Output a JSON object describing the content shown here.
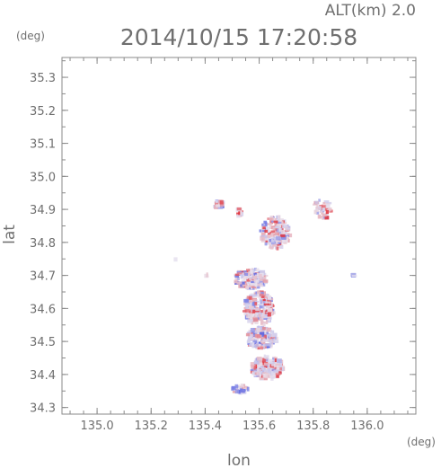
{
  "header": {
    "alt_label": "ALT(km) 2.0",
    "timestamp": "2014/10/15 17:20:58"
  },
  "colors": {
    "axis": "#8a8a8a",
    "text": "#6f6f6f",
    "positive": "#e0303a",
    "negative": "#4a55e0",
    "near_zero": "#e9e3ee"
  },
  "chart_data": {
    "type": "heatmap",
    "title": "2014/10/15 17:20:58",
    "subtitle": "ALT(km) 2.0",
    "xlabel": "lon",
    "ylabel": "lat",
    "x_unit": "(deg)",
    "y_unit": "(deg)",
    "xlim": [
      134.87,
      136.18
    ],
    "ylim": [
      34.28,
      35.36
    ],
    "x_ticks": [
      135.0,
      135.2,
      135.4,
      135.6,
      135.8,
      136.0
    ],
    "x_tick_labels": [
      "135.0",
      "135.2",
      "135.4",
      "135.6",
      "135.8",
      "136.0"
    ],
    "y_ticks": [
      34.3,
      34.4,
      34.5,
      34.6,
      34.7,
      34.8,
      34.9,
      35.0,
      35.1,
      35.2,
      35.3
    ],
    "y_tick_labels": [
      "34.3",
      "34.4",
      "34.5",
      "34.6",
      "34.7",
      "34.8",
      "34.9",
      "35.0",
      "35.1",
      "35.2",
      "35.3"
    ],
    "grid": false,
    "legend": "none",
    "value_range": [
      -1,
      1
    ],
    "color_scale": "blue (negative) - white - red (positive)",
    "regions": [
      {
        "lon": 135.45,
        "lat": 34.915,
        "rlon": 0.02,
        "rlat": 0.012,
        "n": 25,
        "bias": 0.0
      },
      {
        "lon": 135.53,
        "lat": 34.89,
        "rlon": 0.015,
        "rlat": 0.012,
        "n": 15,
        "bias": 0.3
      },
      {
        "lon": 135.66,
        "lat": 34.83,
        "rlon": 0.055,
        "rlat": 0.05,
        "n": 170,
        "bias": 0.1
      },
      {
        "lon": 135.835,
        "lat": 34.9,
        "rlon": 0.035,
        "rlat": 0.03,
        "n": 45,
        "bias": 0.25
      },
      {
        "lon": 135.57,
        "lat": 34.69,
        "rlon": 0.06,
        "rlat": 0.03,
        "n": 160,
        "bias": 0.0
      },
      {
        "lon": 135.6,
        "lat": 34.6,
        "rlon": 0.055,
        "rlat": 0.05,
        "n": 210,
        "bias": 0.1
      },
      {
        "lon": 135.61,
        "lat": 34.51,
        "rlon": 0.055,
        "rlat": 0.035,
        "n": 170,
        "bias": -0.15
      },
      {
        "lon": 135.63,
        "lat": 34.42,
        "rlon": 0.06,
        "rlat": 0.035,
        "n": 190,
        "bias": 0.25
      },
      {
        "lon": 135.53,
        "lat": 34.355,
        "rlon": 0.03,
        "rlat": 0.012,
        "n": 40,
        "bias": -0.1
      },
      {
        "lon": 135.95,
        "lat": 34.7,
        "rlon": 0.004,
        "rlat": 0.004,
        "n": 3,
        "bias": -0.6
      },
      {
        "lon": 135.29,
        "lat": 34.75,
        "rlon": 0.002,
        "rlat": 0.002,
        "n": 1,
        "bias": 0.0
      },
      {
        "lon": 135.405,
        "lat": 34.7,
        "rlon": 0.005,
        "rlat": 0.005,
        "n": 3,
        "bias": 0.0
      }
    ]
  }
}
